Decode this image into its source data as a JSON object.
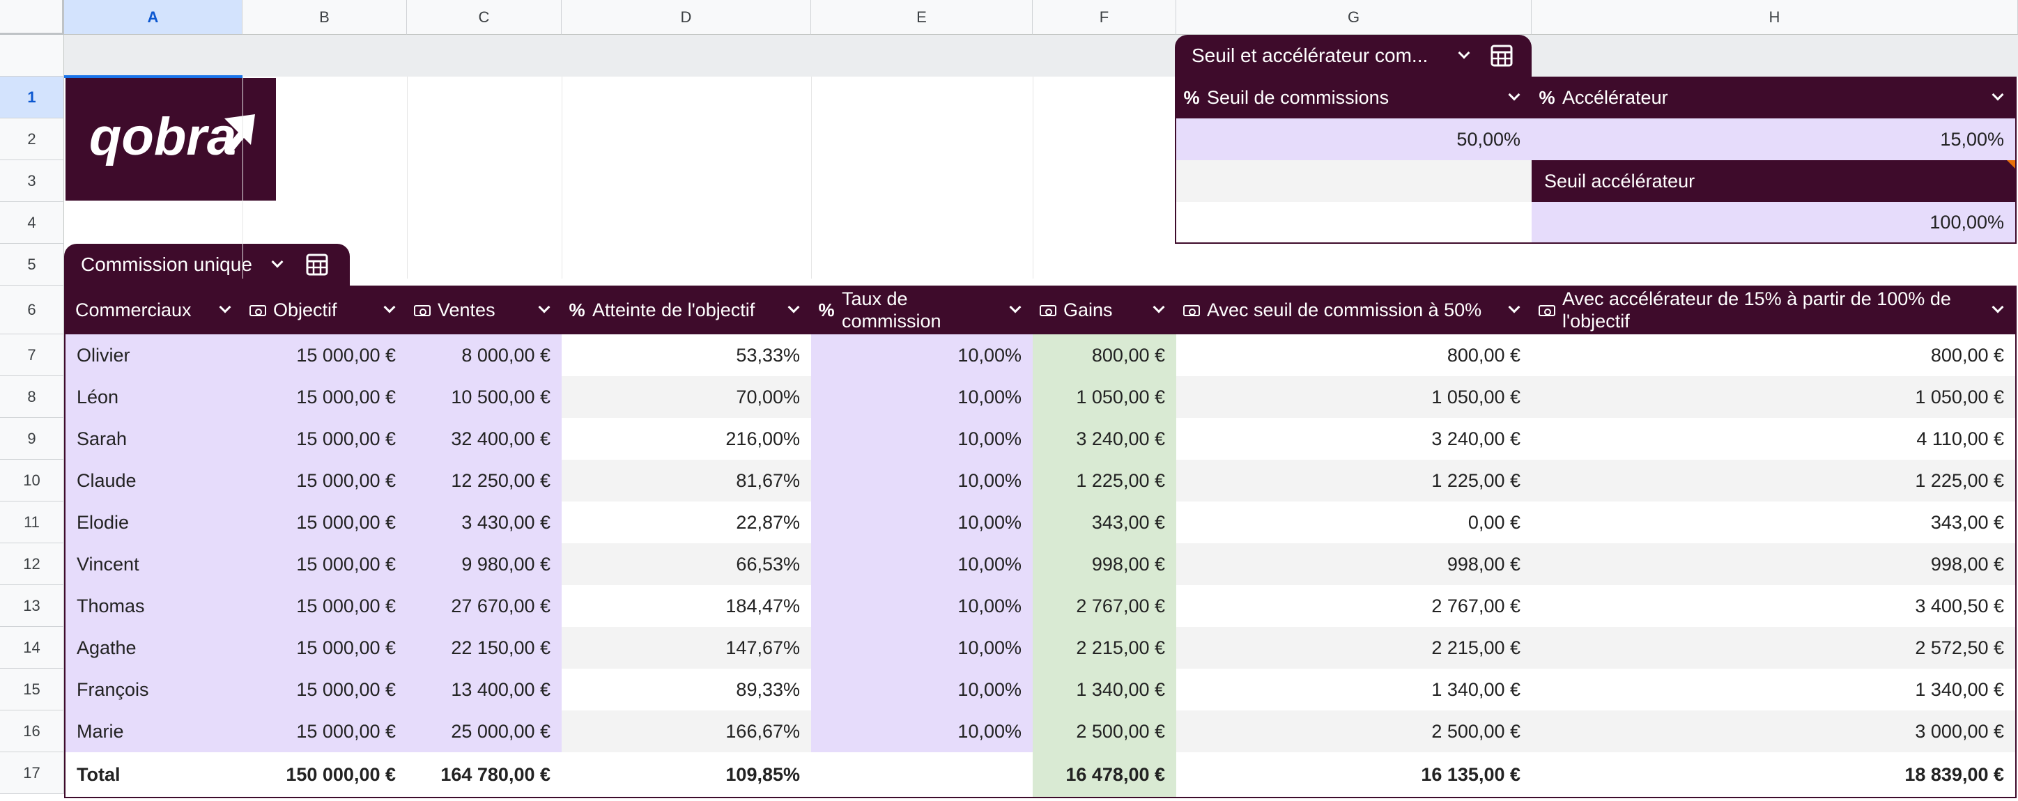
{
  "columns": [
    "A",
    "B",
    "C",
    "D",
    "E",
    "F",
    "G",
    "H"
  ],
  "rows": [
    "1",
    "2",
    "3",
    "4",
    "5",
    "6",
    "7",
    "8",
    "9",
    "10",
    "11",
    "12",
    "13",
    "14",
    "15",
    "16",
    "17"
  ],
  "logo": {
    "text": "qobra"
  },
  "settings_table": {
    "title": "Seuil et accélérateur com...",
    "seuil_header": "Seuil de commissions",
    "accel_header": "Accélérateur",
    "seuil_value": "50,00%",
    "accel_value": "15,00%",
    "seuil_accel_label": "Seuil accélérateur",
    "seuil_accel_value": "100,00%"
  },
  "main_table": {
    "title": "Commission unique",
    "headers": [
      "Commerciaux",
      "Objectif",
      "Ventes",
      "Atteinte de l'objectif",
      "Taux de commission",
      "Gains",
      "Avec seuil de commission à 50%",
      "Avec accélérateur de 15% à partir de 100% de l'objectif"
    ],
    "header_icons": [
      "",
      "money-icon",
      "money-icon",
      "percent-icon",
      "percent-icon",
      "money-icon",
      "money-icon",
      "money-icon"
    ],
    "rows": [
      [
        "Olivier",
        "15 000,00 €",
        "8 000,00 €",
        "53,33%",
        "10,00%",
        "800,00 €",
        "800,00 €",
        "800,00 €"
      ],
      [
        "Léon",
        "15 000,00 €",
        "10 500,00 €",
        "70,00%",
        "10,00%",
        "1 050,00 €",
        "1 050,00 €",
        "1 050,00 €"
      ],
      [
        "Sarah",
        "15 000,00 €",
        "32 400,00 €",
        "216,00%",
        "10,00%",
        "3 240,00 €",
        "3 240,00 €",
        "4 110,00 €"
      ],
      [
        "Claude",
        "15 000,00 €",
        "12 250,00 €",
        "81,67%",
        "10,00%",
        "1 225,00 €",
        "1 225,00 €",
        "1 225,00 €"
      ],
      [
        "Elodie",
        "15 000,00 €",
        "3 430,00 €",
        "22,87%",
        "10,00%",
        "343,00 €",
        "0,00 €",
        "343,00 €"
      ],
      [
        "Vincent",
        "15 000,00 €",
        "9 980,00 €",
        "66,53%",
        "10,00%",
        "998,00 €",
        "998,00 €",
        "998,00 €"
      ],
      [
        "Thomas",
        "15 000,00 €",
        "27 670,00 €",
        "184,47%",
        "10,00%",
        "2 767,00 €",
        "2 767,00 €",
        "3 400,50 €"
      ],
      [
        "Agathe",
        "15 000,00 €",
        "22 150,00 €",
        "147,67%",
        "10,00%",
        "2 215,00 €",
        "2 215,00 €",
        "2 572,50 €"
      ],
      [
        "François",
        "15 000,00 €",
        "13 400,00 €",
        "89,33%",
        "10,00%",
        "1 340,00 €",
        "1 340,00 €",
        "1 340,00 €"
      ],
      [
        "Marie",
        "15 000,00 €",
        "25 000,00 €",
        "166,67%",
        "10,00%",
        "2 500,00 €",
        "2 500,00 €",
        "3 000,00 €"
      ]
    ],
    "total": [
      "Total",
      "150 000,00 €",
      "164 780,00 €",
      "109,85%",
      "",
      "16 478,00 €",
      "16 135,00 €",
      "18 839,00 €"
    ]
  },
  "colors": {
    "header": "#3e0b2b",
    "input": "#e6dcfb",
    "gains": "#d9ead3",
    "selection": "#d3e3fd"
  }
}
